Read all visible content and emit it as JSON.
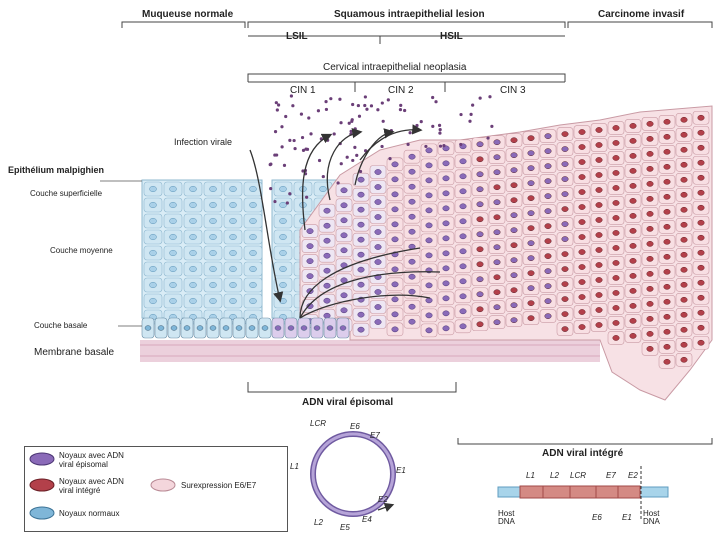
{
  "header": {
    "normal": "Muqueuse normale",
    "squamous": "Squamous intraepithelial lesion",
    "invasive": "Carcinome invasif",
    "lsil": "LSIL",
    "hsil": "HSIL",
    "cin_title": "Cervical intraepithelial neoplasia",
    "cin1": "CIN 1",
    "cin2": "CIN 2",
    "cin3": "CIN 3"
  },
  "labels": {
    "infection": "Infection virale",
    "epithelium": "Epithélium malpighien",
    "superficial": "Couche superficielle",
    "middle": "Couche moyenne",
    "basal": "Couche basale",
    "membrane": "Membrane basale"
  },
  "episomal": {
    "title": "ADN viral épisomal",
    "genes": [
      "LCR",
      "E6",
      "E7",
      "L1",
      "E1",
      "E2",
      "E4",
      "E5",
      "L2"
    ]
  },
  "integrated": {
    "title": "ADN viral intégré",
    "top_genes": [
      "L1",
      "L2",
      "LCR",
      "E7",
      "E2"
    ],
    "bottom_genes": [
      "E6",
      "E1"
    ],
    "host_left": "Host DNA",
    "host_right": "Host DNA"
  },
  "legend": {
    "item1": "Noyaux avec ADN viral épisomal",
    "item2": "Noyaux avec ADN viral intégré",
    "item3": "Noyaux normaux",
    "item4": "Surexpression E6/E7"
  },
  "colors": {
    "normal_cell": "#cfe6f2",
    "normal_nucleus": "#7fb6d8",
    "episomal_nucleus": "#8a6ab8",
    "integrated_nucleus": "#b3404a",
    "overexpression": "#f4d6dc",
    "membrane": "#e8c4d4"
  }
}
